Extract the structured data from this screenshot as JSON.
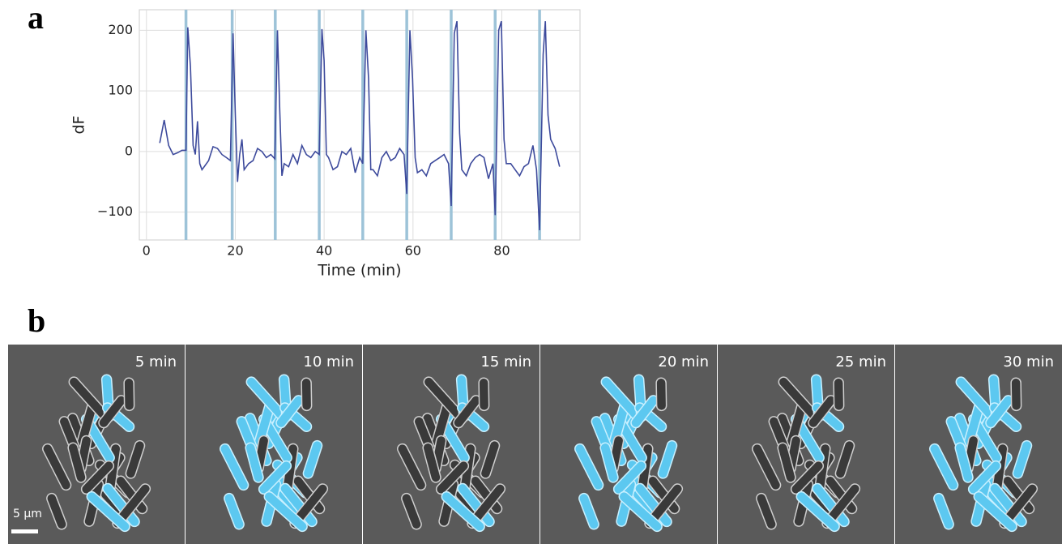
{
  "panel_labels": [
    "a",
    "b"
  ],
  "chart_data": {
    "type": "line",
    "ylabel": "dF",
    "xlabel": "Time (min)",
    "color": "#3d4a9c",
    "grid": true,
    "xlim": [
      -1.6,
      97.6
    ],
    "xticks": [
      0,
      20,
      40,
      60,
      80
    ],
    "ylim": [
      -146,
      234
    ],
    "yticks": [
      {
        "value": -100,
        "label": "−100"
      },
      0,
      100,
      200
    ],
    "vlines": [
      8.9,
      19.3,
      29.0,
      38.9,
      48.7,
      58.6,
      68.6,
      78.5,
      88.5
    ],
    "vline_color": "#9dc3d8",
    "x": [
      3,
      4,
      5,
      6,
      7,
      8,
      8.9,
      9.3,
      9.9,
      10.5,
      11,
      11.5,
      12,
      12.5,
      13,
      14,
      15,
      16,
      17,
      18,
      18.9,
      19.5,
      20,
      20.5,
      21,
      21.5,
      22,
      23,
      24,
      25,
      26,
      27,
      28,
      28.9,
      29.5,
      30,
      30.5,
      31,
      32,
      33,
      34,
      35,
      36,
      37,
      38,
      38.9,
      39.5,
      40,
      40.5,
      41,
      42,
      43,
      44,
      45,
      46,
      47,
      48,
      48.7,
      49.4,
      50,
      50.5,
      51,
      52,
      53,
      54,
      55,
      56,
      57,
      58,
      58.6,
      59.3,
      59.9,
      60.5,
      61,
      62,
      63,
      64,
      65,
      66,
      67,
      68,
      68.6,
      69.3,
      69.9,
      70.5,
      71,
      72,
      73,
      74,
      75,
      76,
      77,
      78,
      78.5,
      79.3,
      79.9,
      80.5,
      81,
      82,
      83,
      84,
      85,
      86,
      87,
      87.8,
      88.5,
      89.3,
      89.8,
      90.4,
      91,
      92,
      93
    ],
    "values": [
      14,
      52,
      10,
      -5,
      -2,
      2,
      2,
      205,
      140,
      10,
      -5,
      50,
      -20,
      -30,
      -25,
      -15,
      8,
      5,
      -5,
      -10,
      -15,
      195,
      60,
      -50,
      -5,
      20,
      -30,
      -20,
      -15,
      5,
      0,
      -10,
      -5,
      -12,
      200,
      70,
      -40,
      -20,
      -25,
      -5,
      -20,
      10,
      -5,
      -10,
      0,
      -5,
      202,
      150,
      -5,
      -10,
      -30,
      -25,
      0,
      -5,
      5,
      -35,
      -10,
      -20,
      200,
      120,
      -30,
      -30,
      -40,
      -10,
      0,
      -15,
      -10,
      5,
      -5,
      -70,
      200,
      120,
      -10,
      -35,
      -30,
      -40,
      -20,
      -15,
      -10,
      -5,
      -20,
      -90,
      195,
      215,
      30,
      -30,
      -40,
      -20,
      -10,
      -5,
      -10,
      -45,
      -20,
      -105,
      200,
      215,
      20,
      -20,
      -20,
      -30,
      -40,
      -25,
      -20,
      10,
      -30,
      -130,
      160,
      215,
      60,
      20,
      5,
      -25
    ]
  },
  "frames": [
    "5 min",
    "10 min",
    "15 min",
    "20 min",
    "25 min",
    "30 min"
  ],
  "scale_bar": "5 µm"
}
